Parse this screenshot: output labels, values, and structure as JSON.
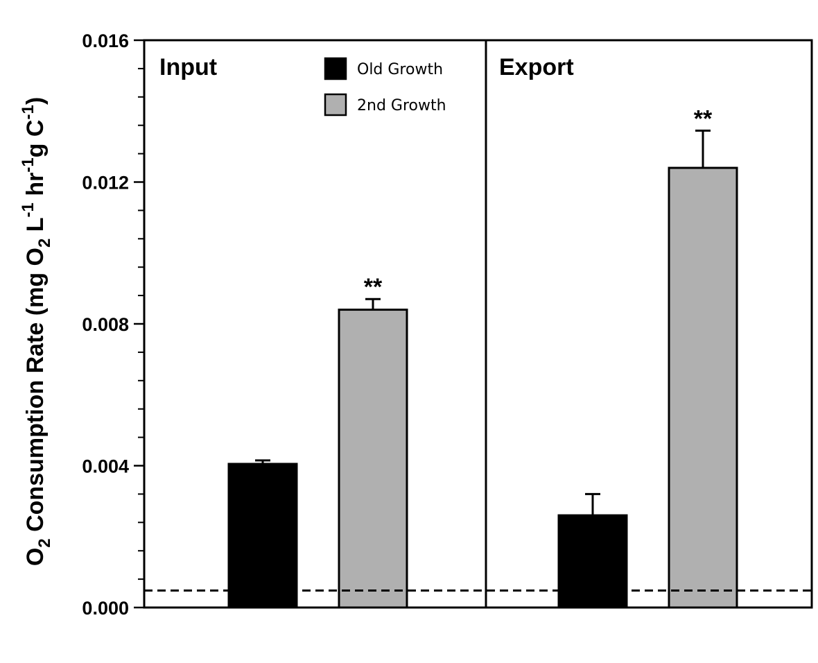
{
  "chart_data": {
    "type": "bar",
    "panels": [
      {
        "label": "Input",
        "categories": [
          "Old Growth",
          "2nd Growth"
        ],
        "values": [
          0.00405,
          0.0084
        ],
        "errors": [
          0.0001,
          0.0003
        ],
        "significance": [
          "",
          "**"
        ]
      },
      {
        "label": "Export",
        "categories": [
          "Old Growth",
          "2nd Growth"
        ],
        "values": [
          0.0026,
          0.0124
        ],
        "errors": [
          0.0006,
          0.00105
        ],
        "significance": [
          "",
          "**"
        ]
      }
    ],
    "series": [
      {
        "name": "Old Growth",
        "color": "#000000"
      },
      {
        "name": "2nd Growth",
        "color": "#b0b0b0"
      }
    ],
    "ylim": [
      0,
      0.016
    ],
    "yticks": [
      "0.000",
      "0.004",
      "0.008",
      "0.012",
      "0.016"
    ],
    "ytick_values": [
      0,
      0.004,
      0.008,
      0.012,
      0.016
    ],
    "y_minor_step": 0.0008,
    "reference_line": 0.00048,
    "ylabel": {
      "main1": "O",
      "sub1": "2",
      "main2": " Consumption Rate (mg O",
      "sub2": "2",
      "main3": " L",
      "sup1": "-1",
      "main4": " hr",
      "sup2": "-1",
      "main5": "g C",
      "sup3": "-1",
      "main6": ")"
    },
    "legend_placement": "top-center of left panel"
  }
}
